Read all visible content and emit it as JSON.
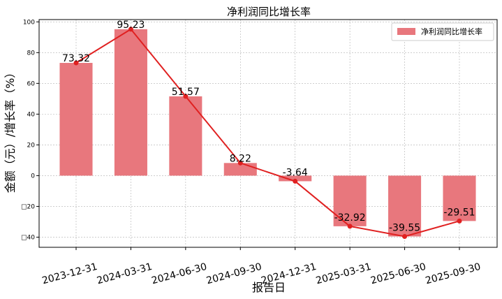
{
  "chart_data": {
    "type": "bar",
    "title": "净利润同比增长率",
    "xlabel": "报告日",
    "ylabel": "金额（元）/增长率（%）",
    "categories": [
      "2023-12-31",
      "2024-03-31",
      "2024-06-30",
      "2024-09-30",
      "2024-12-31",
      "2025-03-31",
      "2025-06-30",
      "2025-09-30"
    ],
    "series": [
      {
        "name": "净利润同比增长率",
        "values": [
          73.32,
          95.23,
          51.57,
          8.22,
          -3.64,
          -32.92,
          -39.55,
          -29.51
        ],
        "value_labels": [
          "73.32",
          "95.23",
          "51.57",
          "8.22",
          "-3.64",
          "-32.92",
          "-39.55",
          "-29.51"
        ]
      }
    ],
    "ylim": [
      -46.6,
      101.5
    ],
    "y_ticks": [
      100,
      80,
      60,
      40,
      20,
      0,
      -20,
      -40
    ],
    "y_tick_labels": [
      "100",
      "80",
      "60",
      "40",
      "20",
      "0",
      "□20",
      "□40"
    ],
    "grid": true,
    "legend_position": "top-right",
    "colors": {
      "bar": "#e8777d",
      "line": "#e02020"
    }
  }
}
